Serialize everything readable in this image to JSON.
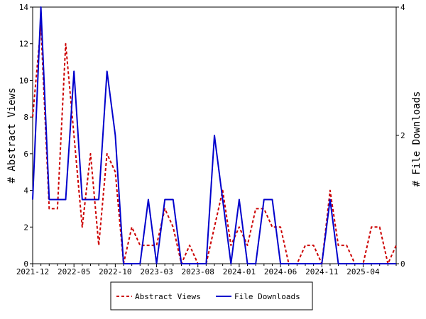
{
  "chart_data": {
    "type": "line",
    "title": "",
    "xlabel": "",
    "ylabel": "# Abstract Views",
    "y2label": "# File Downloads",
    "grid": false,
    "legend_position": "bottom",
    "x_range": [
      "2021-12",
      "2025-08"
    ],
    "ylim": [
      0,
      14
    ],
    "y2lim": [
      0,
      4
    ],
    "y_ticks": [
      0,
      2,
      4,
      6,
      8,
      10,
      12,
      14
    ],
    "y2_ticks": [
      0,
      2,
      4
    ],
    "x_tick_labels": [
      "2021-12",
      "2022-05",
      "2022-10",
      "2023-03",
      "2023-08",
      "2024-01",
      "2024-06",
      "2024-11",
      "2025-04"
    ],
    "colors": {
      "abstract_views": "#cc0000",
      "file_downloads": "#0000cc"
    },
    "x": [
      "2021-12",
      "2022-01",
      "2022-02",
      "2022-03",
      "2022-04",
      "2022-05",
      "2022-06",
      "2022-07",
      "2022-08",
      "2022-09",
      "2022-10",
      "2022-11",
      "2022-12",
      "2023-01",
      "2023-02",
      "2023-03",
      "2023-04",
      "2023-05",
      "2023-06",
      "2023-07",
      "2023-08",
      "2023-09",
      "2023-10",
      "2023-11",
      "2023-12",
      "2024-01",
      "2024-02",
      "2024-03",
      "2024-04",
      "2024-05",
      "2024-06",
      "2024-07",
      "2024-08",
      "2024-09",
      "2024-10",
      "2024-11",
      "2024-12",
      "2025-01",
      "2025-02",
      "2025-03",
      "2025-04",
      "2025-05",
      "2025-06",
      "2025-07",
      "2025-08"
    ],
    "series": [
      {
        "name": "Abstract Views",
        "axis": "left",
        "style": "dashed",
        "values": [
          8,
          13,
          3,
          3,
          12,
          7,
          2,
          6,
          1,
          6,
          5,
          0,
          2,
          1,
          1,
          1,
          3,
          2,
          0,
          1,
          0,
          0,
          2,
          4,
          1,
          2,
          1,
          3,
          3,
          2,
          2,
          0,
          0,
          1,
          1,
          0,
          4,
          1,
          1,
          0,
          0,
          2,
          2,
          0,
          1
        ]
      },
      {
        "name": "File Downloads",
        "axis": "right",
        "style": "solid",
        "values": [
          1,
          4,
          1,
          1,
          1,
          3,
          1,
          1,
          1,
          3,
          2,
          0,
          0,
          0,
          1,
          0,
          1,
          1,
          0,
          0,
          0,
          0,
          2,
          1,
          0,
          1,
          0,
          0,
          1,
          1,
          0,
          0,
          0,
          0,
          0,
          0,
          1,
          0,
          0,
          0,
          0,
          0,
          0,
          0,
          0
        ]
      }
    ]
  }
}
